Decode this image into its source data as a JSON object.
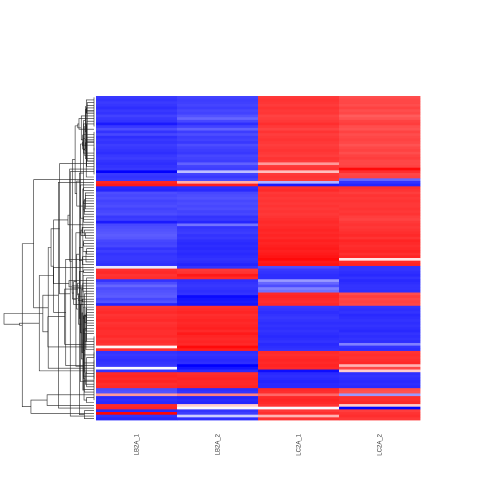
{
  "chart_data": {
    "type": "heatmap",
    "title": "",
    "xlabel": "",
    "ylabel": "",
    "columns": [
      "LB2A_1",
      "LB2A_2",
      "LC2A_1",
      "LC2A_2"
    ],
    "color_scale": {
      "low": "#0000ff",
      "mid": "#ffffff",
      "high": "#ff0000"
    },
    "value_range": [
      -1,
      1
    ],
    "dendrogram": "rows",
    "legend": "none",
    "row_values": [
      [
        -0.78,
        -0.74,
        0.78,
        0.7
      ],
      [
        -0.8,
        -0.76,
        0.8,
        0.72
      ],
      [
        -0.77,
        -0.75,
        0.79,
        0.72
      ],
      [
        -0.79,
        -0.73,
        0.77,
        0.7
      ],
      [
        -0.82,
        -0.76,
        0.8,
        0.74
      ],
      [
        -0.78,
        -0.72,
        0.78,
        0.7
      ],
      [
        -0.8,
        -0.74,
        0.79,
        0.72
      ],
      [
        -0.74,
        -0.68,
        0.74,
        0.64
      ],
      [
        -0.78,
        -0.6,
        0.76,
        0.68
      ],
      [
        -0.8,
        -0.72,
        0.78,
        0.74
      ],
      [
        -0.9,
        -0.82,
        0.82,
        0.76
      ],
      [
        -0.78,
        -0.74,
        0.78,
        0.7
      ],
      [
        -0.7,
        -0.62,
        0.74,
        0.68
      ],
      [
        -0.8,
        -0.76,
        0.8,
        0.74
      ],
      [
        -0.72,
        -0.7,
        0.76,
        0.7
      ],
      [
        -0.82,
        -0.76,
        0.78,
        0.72
      ],
      [
        -0.78,
        -0.74,
        0.8,
        0.74
      ],
      [
        -0.8,
        -0.78,
        0.78,
        0.72
      ],
      [
        -0.76,
        -0.7,
        0.76,
        0.68
      ],
      [
        -0.78,
        -0.74,
        0.78,
        0.72
      ],
      [
        -0.8,
        -0.76,
        0.8,
        0.74
      ],
      [
        -0.82,
        -0.78,
        0.78,
        0.7
      ],
      [
        -0.78,
        -0.72,
        0.76,
        0.74
      ],
      [
        -0.76,
        -0.74,
        0.8,
        0.76
      ],
      [
        -0.8,
        -0.76,
        0.78,
        0.72
      ],
      [
        -0.82,
        -0.62,
        0.4,
        0.72
      ],
      [
        -0.8,
        -0.74,
        0.78,
        0.74
      ],
      [
        -0.78,
        -0.76,
        0.8,
        0.96
      ],
      [
        -1.0,
        -0.25,
        0.25,
        0.82
      ],
      [
        -0.78,
        -0.74,
        0.78,
        0.72
      ],
      [
        -0.8,
        -0.78,
        0.8,
        0.74
      ],
      [
        -0.78,
        -0.72,
        0.78,
        -0.6
      ],
      [
        0.85,
        0.32,
        -0.3,
        -0.8
      ],
      [
        0.9,
        0.88,
        -0.9,
        -0.85
      ],
      [
        -0.84,
        -0.82,
        0.82,
        0.82
      ],
      [
        -0.86,
        -0.84,
        0.84,
        0.8
      ],
      [
        -0.7,
        -0.72,
        0.78,
        0.76
      ],
      [
        -0.72,
        -0.7,
        0.8,
        0.8
      ],
      [
        -0.7,
        -0.68,
        0.78,
        0.78
      ],
      [
        -0.74,
        -0.72,
        0.8,
        0.8
      ],
      [
        -0.72,
        -0.7,
        0.78,
        0.78
      ],
      [
        -0.7,
        -0.72,
        0.8,
        0.78
      ],
      [
        -0.74,
        -0.7,
        0.78,
        0.8
      ],
      [
        -0.72,
        -0.74,
        0.8,
        0.78
      ],
      [
        -0.7,
        -0.72,
        0.78,
        0.8
      ],
      [
        -0.78,
        -0.8,
        0.8,
        0.76
      ],
      [
        -0.76,
        -0.78,
        0.82,
        0.74
      ],
      [
        -0.9,
        -0.85,
        0.84,
        0.78
      ],
      [
        -0.72,
        -0.55,
        0.82,
        0.8
      ],
      [
        -0.7,
        -0.8,
        0.84,
        0.78
      ],
      [
        -0.68,
        -0.78,
        0.86,
        0.8
      ],
      [
        -0.66,
        -0.76,
        0.84,
        0.82
      ],
      [
        -0.64,
        -0.8,
        0.86,
        0.84
      ],
      [
        -0.66,
        -0.78,
        0.84,
        0.8
      ],
      [
        -0.72,
        -0.82,
        0.88,
        0.86
      ],
      [
        -0.74,
        -0.84,
        0.86,
        0.84
      ],
      [
        -0.72,
        -0.82,
        0.88,
        0.82
      ],
      [
        -0.8,
        -0.84,
        0.9,
        0.84
      ],
      [
        -0.76,
        -0.82,
        0.88,
        0.86
      ],
      [
        -0.8,
        -0.84,
        0.9,
        0.82
      ],
      [
        -0.78,
        -0.82,
        0.92,
        0.86
      ],
      [
        -0.78,
        -0.8,
        0.96,
        0.1
      ],
      [
        -0.8,
        -0.82,
        0.9,
        0.84
      ],
      [
        -0.82,
        -0.86,
        0.92,
        0.86
      ],
      [
        -0.1,
        -0.8,
        -0.7,
        -0.8
      ],
      [
        0.82,
        0.78,
        -0.78,
        -0.8
      ],
      [
        0.84,
        0.8,
        -0.8,
        -0.82
      ],
      [
        0.8,
        0.9,
        -0.82,
        -0.84
      ],
      [
        0.82,
        0.84,
        -0.82,
        -0.8
      ],
      [
        -0.8,
        -0.82,
        -0.4,
        -0.84
      ],
      [
        -0.7,
        -0.8,
        -0.6,
        -0.82
      ],
      [
        -0.6,
        -0.78,
        -0.7,
        -0.8
      ],
      [
        -0.7,
        -0.8,
        -0.5,
        -0.8
      ],
      [
        -0.68,
        -0.82,
        -0.56,
        -0.82
      ],
      [
        -0.66,
        -0.8,
        0.84,
        0.7
      ],
      [
        -0.64,
        -0.96,
        0.86,
        0.76
      ],
      [
        -0.72,
        -0.92,
        0.84,
        0.72
      ],
      [
        -0.68,
        -0.9,
        0.82,
        0.74
      ],
      [
        -0.86,
        -0.92,
        0.84,
        0.72
      ],
      [
        0.8,
        0.82,
        -0.78,
        -0.8
      ],
      [
        0.82,
        0.84,
        -0.8,
        -0.82
      ],
      [
        0.84,
        0.86,
        -0.82,
        -0.8
      ],
      [
        0.8,
        0.82,
        -0.8,
        -0.84
      ],
      [
        0.82,
        0.84,
        -0.78,
        -0.82
      ],
      [
        0.84,
        0.86,
        -0.8,
        -0.8
      ],
      [
        0.8,
        0.84,
        -0.82,
        -0.82
      ],
      [
        0.82,
        0.86,
        -0.8,
        -0.8
      ],
      [
        0.84,
        0.88,
        -0.82,
        -0.82
      ],
      [
        0.82,
        0.84,
        -0.8,
        -0.84
      ],
      [
        0.82,
        0.9,
        -0.82,
        -0.8
      ],
      [
        0.84,
        0.86,
        -0.84,
        -0.82
      ],
      [
        0.8,
        0.84,
        -0.82,
        -0.8
      ],
      [
        0.82,
        0.86,
        -0.8,
        -0.82
      ],
      [
        0.8,
        0.84,
        -0.84,
        -0.5
      ],
      [
        0.04,
        0.96,
        -0.82,
        -0.8
      ],
      [
        0.82,
        0.88,
        -0.8,
        -0.82
      ],
      [
        -0.8,
        -0.82,
        0.84,
        0.8
      ],
      [
        -0.78,
        -0.8,
        0.82,
        0.82
      ],
      [
        -0.8,
        -0.82,
        0.84,
        0.8
      ],
      [
        -0.82,
        -0.84,
        0.86,
        0.82
      ],
      [
        -0.8,
        -0.82,
        0.84,
        0.84
      ],
      [
        -0.78,
        -1.0,
        0.86,
        0.3
      ],
      [
        -0.02,
        -0.92,
        0.84,
        0.72
      ],
      [
        -0.8,
        -0.84,
        -0.95,
        0.2
      ],
      [
        0.84,
        0.82,
        -0.84,
        -0.82
      ],
      [
        0.86,
        0.84,
        -0.82,
        -0.8
      ],
      [
        0.84,
        0.86,
        -0.84,
        -0.82
      ],
      [
        0.86,
        0.84,
        -0.86,
        -0.84
      ],
      [
        0.82,
        0.84,
        -0.84,
        -0.82
      ],
      [
        0.84,
        0.86,
        -0.84,
        -0.84
      ],
      [
        -0.7,
        -0.82,
        0.84,
        0.7
      ],
      [
        -0.68,
        -0.8,
        0.82,
        0.68
      ],
      [
        0.4,
        0.5,
        0.6,
        -0.4
      ],
      [
        -0.84,
        -0.86,
        0.84,
        0.82
      ],
      [
        -0.82,
        -0.84,
        0.86,
        0.82
      ],
      [
        -0.84,
        -0.86,
        0.84,
        0.84
      ],
      [
        0.84,
        0.2,
        0.8,
        0.2
      ],
      [
        0.86,
        -0.02,
        -0.02,
        -0.98
      ],
      [
        -0.84,
        -0.8,
        0.78,
        0.76
      ],
      [
        0.98,
        -0.76,
        0.82,
        0.8
      ],
      [
        -0.8,
        -0.2,
        0.3,
        0.82
      ],
      [
        -0.84,
        -0.82,
        0.8,
        0.78
      ]
    ]
  }
}
